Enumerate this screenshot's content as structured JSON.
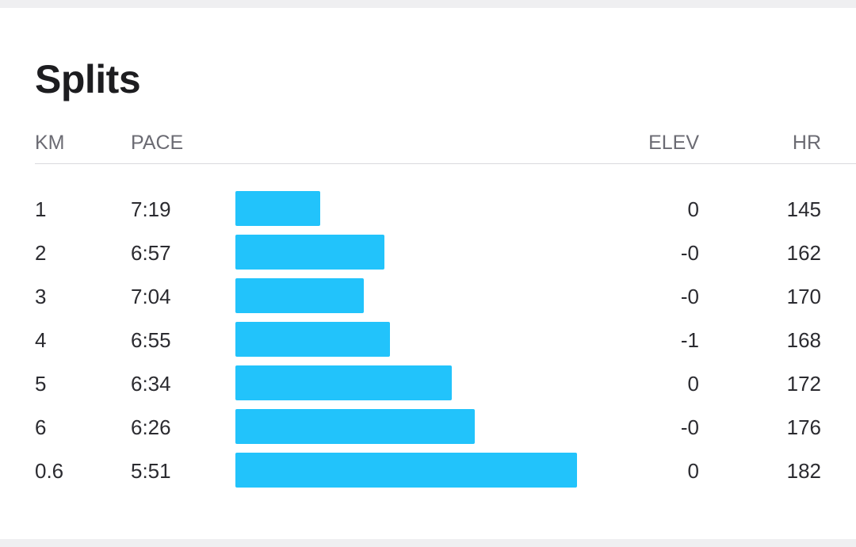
{
  "title": "Splits",
  "columns": {
    "km": "KM",
    "pace": "PACE",
    "elev": "ELEV",
    "hr": "HR"
  },
  "colors": {
    "bar": "#22c3fb",
    "header_text": "#6b6b73",
    "body_text": "#2b2b30"
  },
  "scale": {
    "pace_max_seconds": 439,
    "pace_min_seconds": 351
  },
  "splits": [
    {
      "km": "1",
      "pace": "7:19",
      "pace_seconds": 439,
      "elev": "0",
      "hr": "145"
    },
    {
      "km": "2",
      "pace": "6:57",
      "pace_seconds": 417,
      "elev": "-0",
      "hr": "162"
    },
    {
      "km": "3",
      "pace": "7:04",
      "pace_seconds": 424,
      "elev": "-0",
      "hr": "170"
    },
    {
      "km": "4",
      "pace": "6:55",
      "pace_seconds": 415,
      "elev": "-1",
      "hr": "168"
    },
    {
      "km": "5",
      "pace": "6:34",
      "pace_seconds": 394,
      "elev": "0",
      "hr": "172"
    },
    {
      "km": "6",
      "pace": "6:26",
      "pace_seconds": 386,
      "elev": "-0",
      "hr": "176"
    },
    {
      "km": "0.6",
      "pace": "5:51",
      "pace_seconds": 351,
      "elev": "0",
      "hr": "182"
    }
  ]
}
